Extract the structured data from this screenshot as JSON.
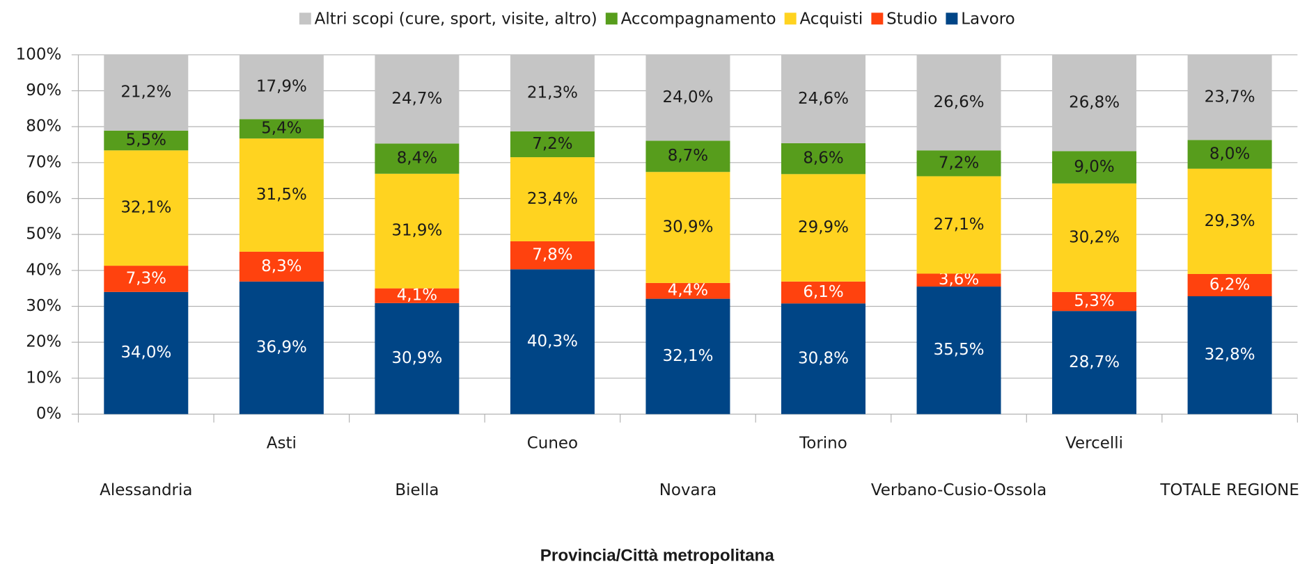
{
  "chart_data": {
    "type": "stacked_bar",
    "x_label": "Provincia/Città metropolitana",
    "categories": [
      "Alessandria",
      "Asti",
      "Biella",
      "Cuneo",
      "Novara",
      "Torino",
      "Verbano-Cusio-Ossola",
      "Vercelli",
      "TOTALE REGIONE"
    ],
    "series": [
      {
        "name": "Lavoro",
        "color": "#004586",
        "values": [
          34.0,
          36.9,
          30.9,
          40.3,
          32.1,
          30.8,
          35.5,
          28.7,
          32.8
        ],
        "value_labels": [
          "34,0%",
          "36,9%",
          "30,9%",
          "40,3%",
          "32,1%",
          "30,8%",
          "35,5%",
          "28,7%",
          "32,8%"
        ]
      },
      {
        "name": "Studio",
        "color": "#ff420e",
        "values": [
          7.3,
          8.3,
          4.1,
          7.8,
          4.4,
          6.1,
          3.6,
          5.3,
          6.2
        ],
        "value_labels": [
          "7,3%",
          "8,3%",
          "4,1%",
          "7,8%",
          "4,4%",
          "6,1%",
          "3,6%",
          "5,3%",
          "6,2%"
        ]
      },
      {
        "name": "Acquisti",
        "color": "#ffd320",
        "values": [
          32.1,
          31.5,
          31.9,
          23.4,
          30.9,
          29.9,
          27.1,
          30.2,
          29.3
        ],
        "value_labels": [
          "32,1%",
          "31,5%",
          "31,9%",
          "23,4%",
          "30,9%",
          "29,9%",
          "27,1%",
          "30,2%",
          "29,3%"
        ]
      },
      {
        "name": "Accompagnamento",
        "color": "#579d1c",
        "values": [
          5.5,
          5.4,
          8.4,
          7.2,
          8.7,
          8.6,
          7.2,
          9.0,
          8.0
        ],
        "value_labels": [
          "5,5%",
          "5,4%",
          "8,4%",
          "7,2%",
          "8,7%",
          "8,6%",
          "7,2%",
          "9,0%",
          "8,0%"
        ]
      },
      {
        "name": "Altri scopi (cure, sport, visite, altro)",
        "color": "#c5c5c5",
        "values": [
          21.2,
          17.9,
          24.7,
          21.3,
          24.0,
          24.6,
          26.6,
          26.8,
          23.7
        ],
        "value_labels": [
          "21,2%",
          "17,9%",
          "24,7%",
          "21,3%",
          "24,0%",
          "24,6%",
          "26,6%",
          "26,8%",
          "23,7%"
        ]
      }
    ],
    "ylim": [
      0,
      100
    ],
    "yticks": [
      {
        "value": 0,
        "label": "0%"
      },
      {
        "value": 10,
        "label": "10%"
      },
      {
        "value": 20,
        "label": "20%"
      },
      {
        "value": 30,
        "label": "30%"
      },
      {
        "value": 40,
        "label": "40%"
      },
      {
        "value": 50,
        "label": "50%"
      },
      {
        "value": 60,
        "label": "60%"
      },
      {
        "value": 70,
        "label": "70%"
      },
      {
        "value": 80,
        "label": "80%"
      },
      {
        "value": 90,
        "label": "90%"
      },
      {
        "value": 100,
        "label": "100%"
      }
    ],
    "grid": true,
    "legend": "top"
  }
}
